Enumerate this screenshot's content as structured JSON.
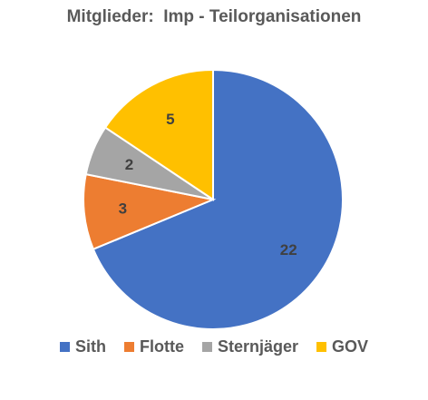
{
  "chart_data": {
    "type": "pie",
    "title": "Mitglieder:  Imp - Teilorganisationen",
    "categories": [
      "Sith",
      "Flotte",
      "Sternjäger",
      "GOV"
    ],
    "values": [
      22,
      3,
      2,
      5
    ],
    "colors": [
      "#4472C4",
      "#ED7D31",
      "#A5A5A5",
      "#FFC000"
    ],
    "legend_position": "bottom"
  }
}
